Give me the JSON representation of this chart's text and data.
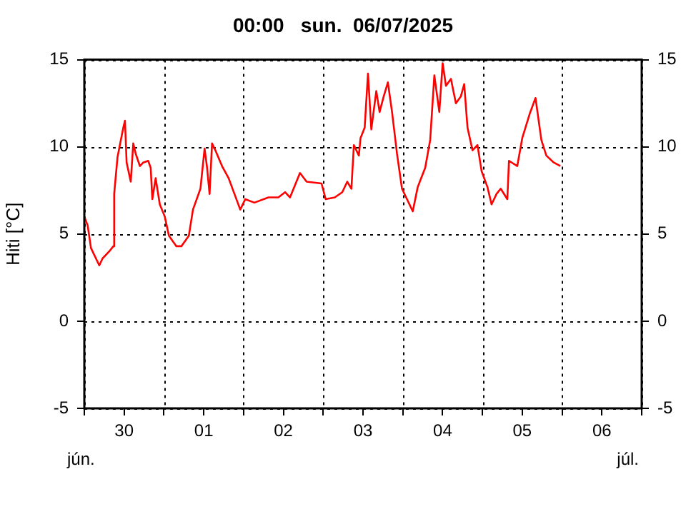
{
  "chart_data": {
    "type": "line",
    "title": "00:00   sun.  06/07/2025",
    "ylabel": "Hiti [°C]",
    "annotations": [
      "jún.",
      "júl."
    ],
    "x": [
      "2025-06-30T00:00",
      "2025-06-30T01:00",
      "2025-06-30T02:00",
      "2025-06-30T04:30",
      "2025-06-30T05:30",
      "2025-06-30T07:30",
      "2025-06-30T08:45",
      "2025-06-30T09:00",
      "2025-06-30T10:00",
      "2025-06-30T10:30",
      "2025-06-30T11:45",
      "2025-06-30T12:15",
      "2025-06-30T12:45",
      "2025-06-30T14:00",
      "2025-06-30T14:45",
      "2025-06-30T15:30",
      "2025-06-30T16:45",
      "2025-06-30T17:45",
      "2025-06-30T19:15",
      "2025-06-30T20:00",
      "2025-06-30T20:30",
      "2025-06-30T21:30",
      "2025-06-30T22:45",
      "2025-07-01T00:15",
      "2025-07-01T01:30",
      "2025-07-01T03:45",
      "2025-07-01T05:15",
      "2025-07-01T07:30",
      "2025-07-01T08:45",
      "2025-07-01T11:00",
      "2025-07-01T12:15",
      "2025-07-01T13:00",
      "2025-07-01T13:45",
      "2025-07-01T14:30",
      "2025-07-01T15:30",
      "2025-07-01T17:30",
      "2025-07-01T19:30",
      "2025-07-01T21:15",
      "2025-07-01T23:00",
      "2025-07-02T00:30",
      "2025-07-02T03:15",
      "2025-07-02T07:30",
      "2025-07-02T10:30",
      "2025-07-02T12:30",
      "2025-07-02T14:00",
      "2025-07-02T17:00",
      "2025-07-02T19:00",
      "2025-07-02T23:30",
      "2025-07-03T00:45",
      "2025-07-03T03:30",
      "2025-07-03T05:45",
      "2025-07-03T07:15",
      "2025-07-03T08:30",
      "2025-07-03T09:15",
      "2025-07-03T10:45",
      "2025-07-03T11:15",
      "2025-07-03T12:30",
      "2025-07-03T13:30",
      "2025-07-03T14:30",
      "2025-07-03T16:00",
      "2025-07-03T17:00",
      "2025-07-03T18:15",
      "2025-07-03T19:30",
      "2025-07-03T20:45",
      "2025-07-03T22:15",
      "2025-07-03T23:45",
      "2025-07-04T01:00",
      "2025-07-04T03:00",
      "2025-07-04T04:30",
      "2025-07-04T06:45",
      "2025-07-04T08:15",
      "2025-07-04T09:30",
      "2025-07-04T11:00",
      "2025-07-04T12:00",
      "2025-07-04T13:00",
      "2025-07-04T14:30",
      "2025-07-04T16:00",
      "2025-07-04T17:30",
      "2025-07-04T18:30",
      "2025-07-04T19:30",
      "2025-07-04T21:00",
      "2025-07-04T22:30",
      "2025-07-04T23:45",
      "2025-07-05T01:30",
      "2025-07-05T02:45",
      "2025-07-05T04:15",
      "2025-07-05T05:30",
      "2025-07-05T07:30",
      "2025-07-05T08:00",
      "2025-07-05T10:30",
      "2025-07-05T12:00",
      "2025-07-05T14:15",
      "2025-07-05T16:00",
      "2025-07-05T17:45",
      "2025-07-05T19:15",
      "2025-07-05T21:30",
      "2025-07-05T23:30"
    ],
    "series": [
      {
        "color": "#ff0000",
        "values": [
          6.0,
          5.5,
          4.2,
          3.2,
          3.6,
          4.0,
          4.3,
          7.3,
          9.4,
          9.9,
          11.1,
          11.5,
          9.1,
          8.0,
          10.2,
          9.6,
          8.9,
          9.1,
          9.2,
          8.8,
          7.0,
          8.2,
          6.7,
          6.0,
          4.9,
          4.3,
          4.3,
          4.9,
          6.4,
          7.6,
          9.9,
          8.8,
          7.3,
          10.2,
          9.8,
          8.9,
          8.2,
          7.3,
          6.4,
          7.0,
          6.8,
          7.1,
          7.1,
          7.4,
          7.1,
          8.5,
          8.0,
          7.9,
          7.0,
          7.1,
          7.4,
          8.0,
          7.6,
          10.1,
          9.5,
          10.5,
          11.1,
          14.2,
          11.0,
          13.2,
          12.0,
          12.9,
          13.7,
          12.0,
          9.6,
          7.6,
          7.1,
          6.3,
          7.7,
          8.8,
          10.4,
          14.1,
          12.0,
          14.8,
          13.5,
          13.9,
          12.5,
          12.9,
          13.6,
          11.1,
          9.8,
          10.1,
          8.6,
          7.7,
          6.7,
          7.3,
          7.6,
          7.0,
          9.2,
          8.9,
          10.5,
          11.9,
          12.8,
          10.4,
          9.5,
          9.1,
          8.9
        ]
      }
    ],
    "xlim": [
      "2025-06-30T00:00",
      "2025-07-07T00:00"
    ],
    "xticks": [
      {
        "value": "2025-06-30T00:00",
        "label": null
      },
      {
        "value": "2025-06-30T12:00",
        "label": "30"
      },
      {
        "value": "2025-07-01T00:00",
        "label": null
      },
      {
        "value": "2025-07-01T12:00",
        "label": "01"
      },
      {
        "value": "2025-07-02T00:00",
        "label": null
      },
      {
        "value": "2025-07-02T12:00",
        "label": "02"
      },
      {
        "value": "2025-07-03T00:00",
        "label": null
      },
      {
        "value": "2025-07-03T12:00",
        "label": "03"
      },
      {
        "value": "2025-07-04T00:00",
        "label": null
      },
      {
        "value": "2025-07-04T12:00",
        "label": "04"
      },
      {
        "value": "2025-07-05T00:00",
        "label": null
      },
      {
        "value": "2025-07-05T12:00",
        "label": "05"
      },
      {
        "value": "2025-07-06T00:00",
        "label": null
      },
      {
        "value": "2025-07-06T12:00",
        "label": "06"
      },
      {
        "value": "2025-07-07T00:00",
        "label": null
      }
    ],
    "ylim": [
      -5,
      15
    ],
    "yticks": [
      -5,
      0,
      5,
      10,
      15
    ],
    "y2lim": [
      -5,
      15
    ],
    "y2ticks": [
      -5,
      0,
      5,
      10,
      15
    ],
    "grid": true,
    "legend": false,
    "marker": "none",
    "line_style": "solid"
  }
}
